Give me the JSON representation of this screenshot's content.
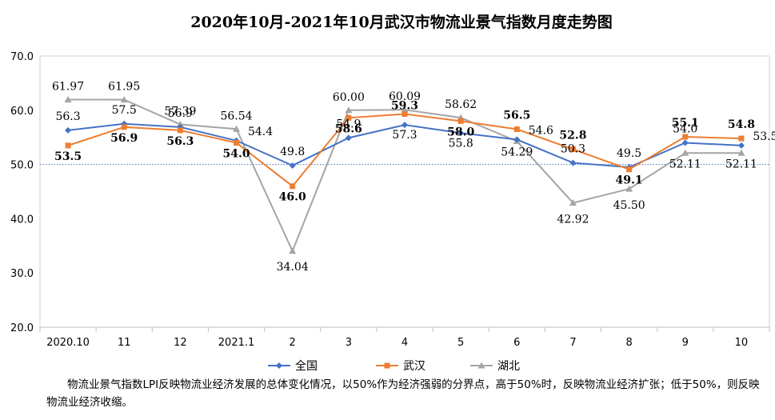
{
  "chart_data": {
    "type": "line",
    "title": "2020年10月-2021年10月武汉市物流业景气指数月度走势图",
    "categories": [
      "2020.10",
      "11",
      "12",
      "2021.1",
      "2",
      "3",
      "4",
      "5",
      "6",
      "7",
      "8",
      "9",
      "10"
    ],
    "ylim": [
      20.0,
      70.0
    ],
    "yticks": [
      "20.0",
      "30.0",
      "40.0",
      "50.0",
      "60.0",
      "70.0"
    ],
    "reference_line": 50.0,
    "legend_position": "bottom",
    "series": [
      {
        "name": "全国",
        "color": "#4472C4",
        "marker": "diamond",
        "values": [
          56.3,
          57.5,
          56.9,
          54.4,
          49.8,
          54.9,
          57.3,
          55.8,
          54.6,
          50.3,
          49.5,
          54.0,
          53.5
        ],
        "labels": [
          "56.3",
          "57.5",
          "56.9",
          "54.4",
          "49.8",
          "54.9",
          "57.3",
          "55.8",
          "54.6",
          "50.3",
          "49.5",
          "54.0",
          "53.5"
        ]
      },
      {
        "name": "武汉",
        "color": "#ED7D31",
        "marker": "square",
        "values": [
          53.5,
          56.9,
          56.3,
          54.0,
          46.0,
          58.6,
          59.3,
          58.0,
          56.5,
          52.8,
          49.1,
          55.1,
          54.8
        ],
        "labels": [
          "53.5",
          "56.9",
          "56.3",
          "54.0",
          "46.0",
          "58.6",
          "59.3",
          "58.0",
          "56.5",
          "52.8",
          "49.1",
          "55.1",
          "54.8"
        ]
      },
      {
        "name": "湖北",
        "color": "#A5A5A5",
        "marker": "triangle",
        "values": [
          61.97,
          61.95,
          57.39,
          56.54,
          34.04,
          60.0,
          60.09,
          58.62,
          54.29,
          42.92,
          45.5,
          52.11,
          52.11
        ],
        "labels": [
          "61.97",
          "61.95",
          "57.39",
          "56.54",
          "34.04",
          "60.00",
          "60.09",
          "58.62",
          "54.29",
          "42.92",
          "45.50",
          "52.11",
          "52.11"
        ]
      }
    ]
  },
  "note": "物流业景气指数LPI反映物流业经济发展的总体变化情况，以50%作为经济强弱的分界点，高于50%时，反映物流业经济扩张；低于50%，则反映物流业经济收缩。"
}
